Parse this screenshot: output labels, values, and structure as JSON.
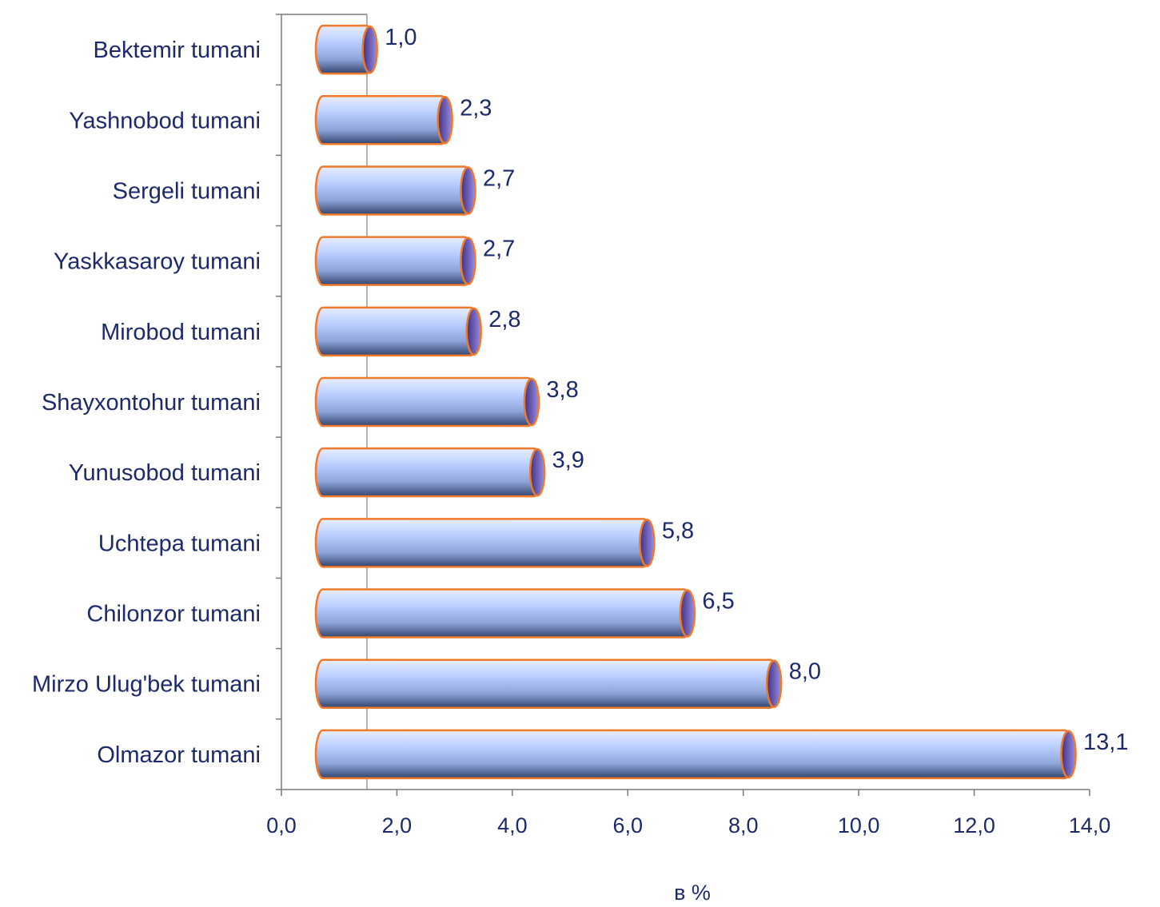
{
  "chart_data": {
    "type": "bar",
    "orientation": "horizontal",
    "categories": [
      "Bektemir tumani",
      "Yashnobod tumani",
      "Sergeli tumani",
      "Yaskkasaroy tumani",
      "Mirobod tumani",
      "Shayxontohur tumani",
      "Yunusobod tumani",
      "Uchtepa tumani",
      "Chilonzor tumani",
      "Mirzo Ulug'bek tumani",
      "Olmazor tumani"
    ],
    "values": [
      1.0,
      2.3,
      2.7,
      2.7,
      2.8,
      3.8,
      3.9,
      5.8,
      6.5,
      8.0,
      13.1
    ],
    "value_labels": [
      "1,0",
      "2,3",
      "2,7",
      "2,7",
      "2,8",
      "3,8",
      "3,9",
      "5,8",
      "6,5",
      "8,0",
      "13,1"
    ],
    "xticks": [
      "0,0",
      "2,0",
      "4,0",
      "6,0",
      "8,0",
      "10,0",
      "12,0",
      "14,0"
    ],
    "xlim": [
      0,
      14
    ],
    "xlabel": "в %",
    "ylabel": "",
    "title": "",
    "colors": {
      "text": "#1c2a6b",
      "bar_light": "#dfe8ff",
      "bar_mid": "#a9c2f4",
      "bar_dark": "#3b4d78",
      "bar_outline": "#f07a2a",
      "cap": "#6a5fb3",
      "axis": "#7a7a7a"
    }
  }
}
